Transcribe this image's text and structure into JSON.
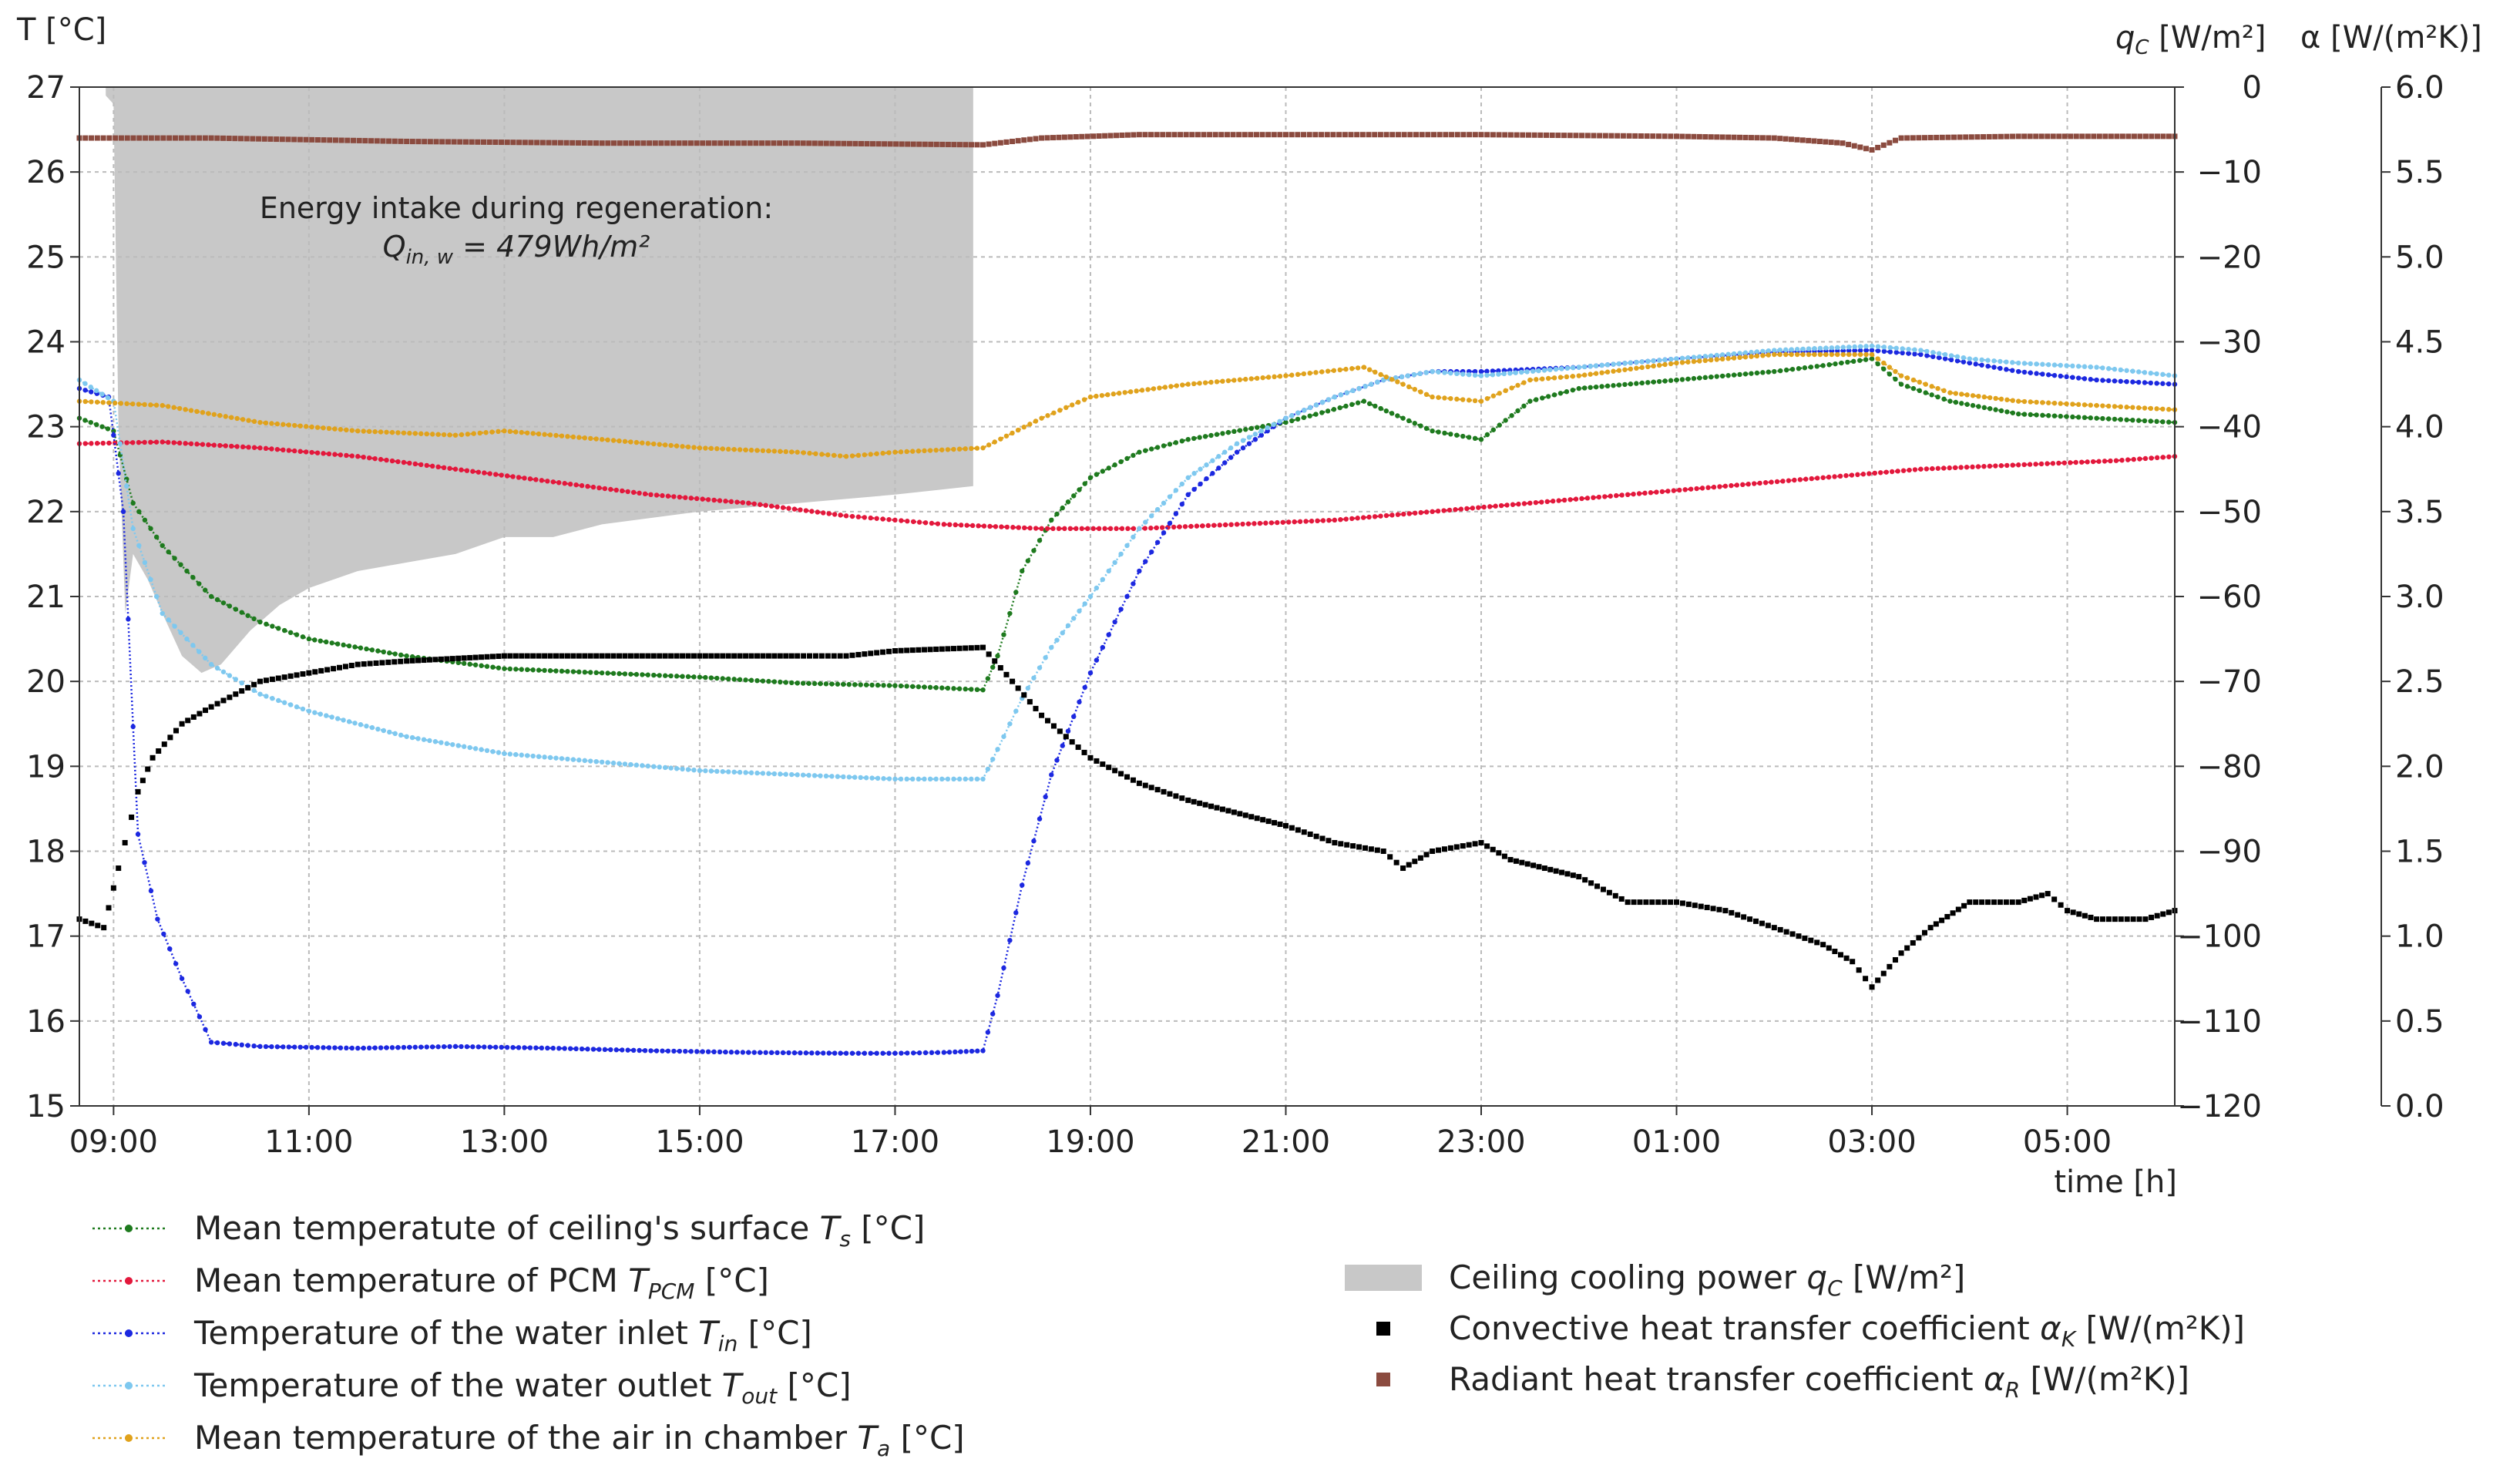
{
  "chart_data": {
    "type": "line",
    "title": "",
    "xlabel": "time [h]",
    "ylabel_left": "T [°C]",
    "ylabel_mid": "qC [W/m²]",
    "ylabel_right": "α [W/(m²K)]",
    "x_hours": {
      "min": 8.65,
      "max": 30.1
    },
    "xticks": [
      {
        "h": 9,
        "label": "09:00"
      },
      {
        "h": 11,
        "label": "11:00"
      },
      {
        "h": 13,
        "label": "13:00"
      },
      {
        "h": 15,
        "label": "15:00"
      },
      {
        "h": 17,
        "label": "17:00"
      },
      {
        "h": 19,
        "label": "19:00"
      },
      {
        "h": 21,
        "label": "21:00"
      },
      {
        "h": 23,
        "label": "23:00"
      },
      {
        "h": 25,
        "label": "01:00"
      },
      {
        "h": 27,
        "label": "03:00"
      },
      {
        "h": 29,
        "label": "05:00"
      }
    ],
    "ylim_T": [
      15,
      27
    ],
    "yticks_T": [
      "15",
      "16",
      "17",
      "18",
      "19",
      "20",
      "21",
      "22",
      "23",
      "24",
      "25",
      "26",
      "27"
    ],
    "ylim_q": [
      -120,
      0
    ],
    "yticks_q": [
      "−120",
      "−110",
      "−100",
      "−90",
      "−80",
      "−70",
      "−60",
      "−50",
      "−40",
      "−30",
      "−20",
      "−10",
      "0"
    ],
    "ylim_alpha": [
      0.0,
      6.0
    ],
    "yticks_alpha": [
      "0.0",
      "0.5",
      "1.0",
      "1.5",
      "2.0",
      "2.5",
      "3.0",
      "3.5",
      "4.0",
      "4.5",
      "5.0",
      "5.5",
      "6.0"
    ],
    "annotation_line1": "Energy intake during regeneration:",
    "annotation_q": "Q",
    "annotation_sub": "in, w",
    "annotation_rest": " = 479Wh/m²",
    "series": [
      {
        "name": "Mean temperatute of ceiling's surface",
        "sym": "T",
        "sub": "s",
        "unit": " [°C]",
        "color": "#1e7a1e",
        "axis": "T",
        "points": [
          [
            8.65,
            23.1
          ],
          [
            9.0,
            22.95
          ],
          [
            9.2,
            22.1
          ],
          [
            9.5,
            21.6
          ],
          [
            10.0,
            21.0
          ],
          [
            10.5,
            20.7
          ],
          [
            11.0,
            20.5
          ],
          [
            12.0,
            20.3
          ],
          [
            13.0,
            20.15
          ],
          [
            14.0,
            20.1
          ],
          [
            15.0,
            20.05
          ],
          [
            16.0,
            19.98
          ],
          [
            17.0,
            19.95
          ],
          [
            17.9,
            19.9
          ],
          [
            18.05,
            20.3
          ],
          [
            18.3,
            21.3
          ],
          [
            18.6,
            21.9
          ],
          [
            19.0,
            22.4
          ],
          [
            19.5,
            22.7
          ],
          [
            20.0,
            22.85
          ],
          [
            21.0,
            23.05
          ],
          [
            21.8,
            23.3
          ],
          [
            22.2,
            23.1
          ],
          [
            22.5,
            22.95
          ],
          [
            23.0,
            22.85
          ],
          [
            23.5,
            23.3
          ],
          [
            24.0,
            23.45
          ],
          [
            25.0,
            23.55
          ],
          [
            26.0,
            23.65
          ],
          [
            26.5,
            23.72
          ],
          [
            27.0,
            23.8
          ],
          [
            27.3,
            23.5
          ],
          [
            27.8,
            23.3
          ],
          [
            28.5,
            23.15
          ],
          [
            29.3,
            23.1
          ],
          [
            30.1,
            23.05
          ]
        ]
      },
      {
        "name": "Mean temperature of PCM",
        "sym": "T",
        "sub": "PCM",
        "unit": " [°C]",
        "color": "#e3183c",
        "axis": "T",
        "points": [
          [
            8.65,
            22.8
          ],
          [
            9.5,
            22.82
          ],
          [
            10.5,
            22.75
          ],
          [
            11.5,
            22.65
          ],
          [
            12.5,
            22.5
          ],
          [
            13.5,
            22.35
          ],
          [
            14.5,
            22.2
          ],
          [
            15.5,
            22.1
          ],
          [
            16.5,
            21.95
          ],
          [
            17.0,
            21.9
          ],
          [
            17.5,
            21.85
          ],
          [
            18.5,
            21.8
          ],
          [
            19.5,
            21.8
          ],
          [
            20.5,
            21.85
          ],
          [
            21.5,
            21.9
          ],
          [
            22.5,
            22.0
          ],
          [
            23.5,
            22.1
          ],
          [
            24.5,
            22.2
          ],
          [
            25.5,
            22.3
          ],
          [
            26.5,
            22.4
          ],
          [
            27.5,
            22.5
          ],
          [
            28.5,
            22.55
          ],
          [
            29.5,
            22.6
          ],
          [
            30.1,
            22.65
          ]
        ]
      },
      {
        "name": "Temperature of the water inlet",
        "sym": "T",
        "sub": "in",
        "unit": " [°C]",
        "color": "#1c28e0",
        "axis": "T",
        "points": [
          [
            8.65,
            23.45
          ],
          [
            8.95,
            23.35
          ],
          [
            9.1,
            22.0
          ],
          [
            9.25,
            18.2
          ],
          [
            9.45,
            17.2
          ],
          [
            9.7,
            16.5
          ],
          [
            10.0,
            15.75
          ],
          [
            10.5,
            15.7
          ],
          [
            11.5,
            15.68
          ],
          [
            12.5,
            15.7
          ],
          [
            13.5,
            15.68
          ],
          [
            14.5,
            15.65
          ],
          [
            15.5,
            15.63
          ],
          [
            16.5,
            15.62
          ],
          [
            17.0,
            15.62
          ],
          [
            17.5,
            15.63
          ],
          [
            17.9,
            15.65
          ],
          [
            18.05,
            16.3
          ],
          [
            18.3,
            17.6
          ],
          [
            18.6,
            18.9
          ],
          [
            19.0,
            20.1
          ],
          [
            19.5,
            21.3
          ],
          [
            20.0,
            22.2
          ],
          [
            20.5,
            22.7
          ],
          [
            21.0,
            23.1
          ],
          [
            21.5,
            23.35
          ],
          [
            22.0,
            23.55
          ],
          [
            22.5,
            23.65
          ],
          [
            23.0,
            23.65
          ],
          [
            24.0,
            23.7
          ],
          [
            25.0,
            23.8
          ],
          [
            26.0,
            23.88
          ],
          [
            27.0,
            23.9
          ],
          [
            27.5,
            23.85
          ],
          [
            28.0,
            23.75
          ],
          [
            28.5,
            23.65
          ],
          [
            29.3,
            23.55
          ],
          [
            30.1,
            23.5
          ]
        ]
      },
      {
        "name": "Temperature of the water outlet",
        "sym": "T",
        "sub": "out",
        "unit": " [°C]",
        "color": "#7ec8ef",
        "axis": "T",
        "points": [
          [
            8.65,
            23.55
          ],
          [
            9.0,
            23.3
          ],
          [
            9.2,
            21.8
          ],
          [
            9.5,
            20.8
          ],
          [
            10.0,
            20.2
          ],
          [
            10.5,
            19.85
          ],
          [
            11.0,
            19.65
          ],
          [
            12.0,
            19.35
          ],
          [
            13.0,
            19.15
          ],
          [
            14.0,
            19.05
          ],
          [
            15.0,
            18.95
          ],
          [
            16.0,
            18.9
          ],
          [
            17.0,
            18.85
          ],
          [
            17.9,
            18.85
          ],
          [
            18.05,
            19.2
          ],
          [
            18.3,
            19.8
          ],
          [
            18.6,
            20.4
          ],
          [
            19.0,
            21.0
          ],
          [
            19.5,
            21.8
          ],
          [
            20.0,
            22.4
          ],
          [
            20.5,
            22.8
          ],
          [
            21.0,
            23.1
          ],
          [
            21.5,
            23.35
          ],
          [
            22.0,
            23.55
          ],
          [
            22.5,
            23.65
          ],
          [
            23.0,
            23.6
          ],
          [
            24.0,
            23.7
          ],
          [
            25.0,
            23.8
          ],
          [
            26.0,
            23.9
          ],
          [
            27.0,
            23.95
          ],
          [
            27.5,
            23.9
          ],
          [
            28.0,
            23.8
          ],
          [
            28.5,
            23.75
          ],
          [
            29.3,
            23.7
          ],
          [
            30.1,
            23.6
          ]
        ]
      },
      {
        "name": "Mean temperature of the air in chamber",
        "sym": "T",
        "sub": "a",
        "unit": " [°C]",
        "color": "#e0a21c",
        "axis": "T",
        "points": [
          [
            8.65,
            23.3
          ],
          [
            9.5,
            23.25
          ],
          [
            10.5,
            23.05
          ],
          [
            11.5,
            22.95
          ],
          [
            12.5,
            22.9
          ],
          [
            13.0,
            22.95
          ],
          [
            14.0,
            22.85
          ],
          [
            15.0,
            22.75
          ],
          [
            16.0,
            22.7
          ],
          [
            16.5,
            22.65
          ],
          [
            17.0,
            22.7
          ],
          [
            17.9,
            22.75
          ],
          [
            18.5,
            23.1
          ],
          [
            19.0,
            23.35
          ],
          [
            20.0,
            23.5
          ],
          [
            21.0,
            23.6
          ],
          [
            21.8,
            23.7
          ],
          [
            22.2,
            23.5
          ],
          [
            22.5,
            23.35
          ],
          [
            23.0,
            23.3
          ],
          [
            23.5,
            23.55
          ],
          [
            24.0,
            23.6
          ],
          [
            25.0,
            23.75
          ],
          [
            26.0,
            23.85
          ],
          [
            27.0,
            23.85
          ],
          [
            27.3,
            23.6
          ],
          [
            27.8,
            23.4
          ],
          [
            28.5,
            23.3
          ],
          [
            29.3,
            23.25
          ],
          [
            30.1,
            23.2
          ]
        ]
      },
      {
        "name": "Convective heat transfer coefficient",
        "sym": "α",
        "sub": "K",
        "unit": " [W/(m²K)]",
        "color": "#000000",
        "axis": "alpha",
        "marker": "square",
        "points": [
          [
            8.65,
            1.1
          ],
          [
            8.9,
            1.05
          ],
          [
            9.05,
            1.4
          ],
          [
            9.25,
            1.85
          ],
          [
            9.4,
            2.05
          ],
          [
            9.7,
            2.25
          ],
          [
            10.0,
            2.35
          ],
          [
            10.5,
            2.5
          ],
          [
            11.0,
            2.55
          ],
          [
            11.5,
            2.6
          ],
          [
            12.0,
            2.62
          ],
          [
            13.0,
            2.65
          ],
          [
            14.0,
            2.65
          ],
          [
            15.0,
            2.65
          ],
          [
            16.0,
            2.65
          ],
          [
            16.5,
            2.65
          ],
          [
            17.0,
            2.68
          ],
          [
            17.9,
            2.7
          ],
          [
            18.2,
            2.5
          ],
          [
            18.5,
            2.3
          ],
          [
            19.0,
            2.05
          ],
          [
            19.5,
            1.9
          ],
          [
            20.0,
            1.8
          ],
          [
            21.0,
            1.65
          ],
          [
            21.5,
            1.55
          ],
          [
            22.0,
            1.5
          ],
          [
            22.2,
            1.4
          ],
          [
            22.5,
            1.5
          ],
          [
            23.0,
            1.55
          ],
          [
            23.3,
            1.45
          ],
          [
            24.0,
            1.35
          ],
          [
            24.5,
            1.2
          ],
          [
            25.0,
            1.2
          ],
          [
            25.5,
            1.15
          ],
          [
            26.0,
            1.05
          ],
          [
            26.5,
            0.95
          ],
          [
            26.8,
            0.85
          ],
          [
            27.0,
            0.7
          ],
          [
            27.3,
            0.9
          ],
          [
            27.6,
            1.05
          ],
          [
            28.0,
            1.2
          ],
          [
            28.5,
            1.2
          ],
          [
            28.8,
            1.25
          ],
          [
            29.0,
            1.15
          ],
          [
            29.3,
            1.1
          ],
          [
            29.8,
            1.1
          ],
          [
            30.1,
            1.15
          ]
        ]
      },
      {
        "name": "Radiant heat transfer coefficient",
        "sym": "α",
        "sub": "R",
        "unit": " [W/(m²K)]",
        "color": "#8b4b3f",
        "axis": "alpha",
        "marker": "square",
        "points": [
          [
            8.65,
            5.7
          ],
          [
            10.0,
            5.7
          ],
          [
            12.0,
            5.68
          ],
          [
            14.0,
            5.67
          ],
          [
            16.0,
            5.67
          ],
          [
            17.9,
            5.66
          ],
          [
            18.5,
            5.7
          ],
          [
            19.5,
            5.72
          ],
          [
            21.0,
            5.72
          ],
          [
            23.0,
            5.72
          ],
          [
            25.0,
            5.71
          ],
          [
            26.0,
            5.7
          ],
          [
            26.7,
            5.67
          ],
          [
            27.0,
            5.63
          ],
          [
            27.3,
            5.7
          ],
          [
            28.5,
            5.71
          ],
          [
            30.1,
            5.71
          ]
        ]
      },
      {
        "name": "Ceiling cooling power",
        "sym": "q",
        "sub": "C",
        "unit": " [W/m²]",
        "color": "#c8c8c8",
        "axis": "q",
        "type": "area",
        "points": [
          [
            8.92,
            -1
          ],
          [
            9.0,
            -2
          ],
          [
            9.05,
            -40
          ],
          [
            9.12,
            -62
          ],
          [
            9.2,
            -55
          ],
          [
            9.35,
            -58
          ],
          [
            9.5,
            -62
          ],
          [
            9.7,
            -67
          ],
          [
            9.9,
            -69
          ],
          [
            10.1,
            -68
          ],
          [
            10.4,
            -64
          ],
          [
            10.7,
            -61
          ],
          [
            11.0,
            -59
          ],
          [
            11.5,
            -57
          ],
          [
            12.0,
            -56
          ],
          [
            12.5,
            -55
          ],
          [
            13.0,
            -53
          ],
          [
            13.5,
            -53
          ],
          [
            14.0,
            -51.5
          ],
          [
            15.0,
            -50
          ],
          [
            16.0,
            -49
          ],
          [
            17.0,
            -48
          ],
          [
            17.8,
            -47
          ],
          [
            17.8,
            0
          ]
        ]
      }
    ]
  }
}
